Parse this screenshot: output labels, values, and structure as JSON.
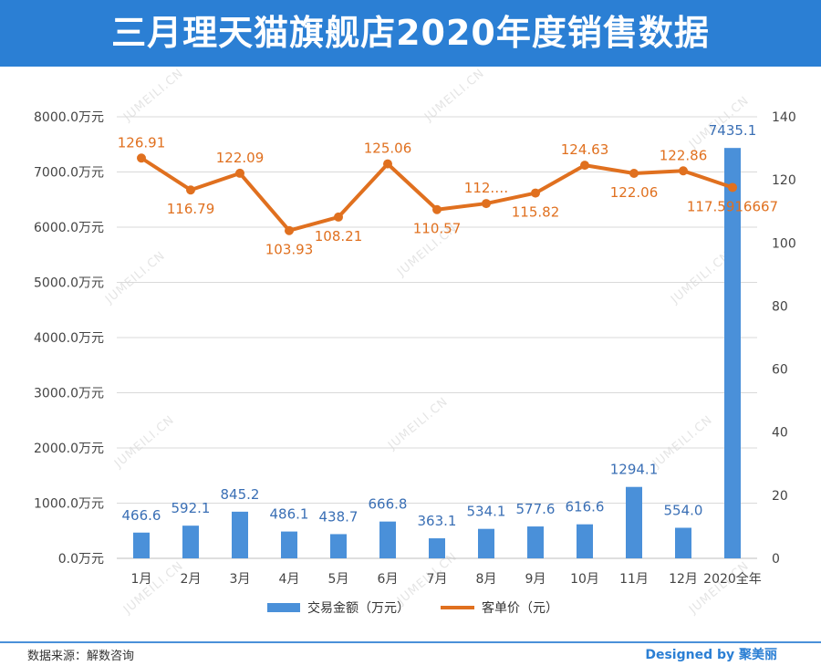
{
  "header": {
    "title": "三月理天猫旗舰店2020年度销售数据"
  },
  "footer": {
    "source": "数据来源：解数咨询",
    "designed_by": "Designed by 聚美丽"
  },
  "watermark": "JUMEILI.CN",
  "colors": {
    "header_bg": "#2b7fd4",
    "bar": "#4a90d9",
    "line": "#e0701f",
    "grid": "#d9d9d9"
  },
  "chart_data": {
    "type": "bar",
    "title": "三月理天猫旗舰店2020年度销售数据",
    "categories": [
      "1月",
      "2月",
      "3月",
      "4月",
      "5月",
      "6月",
      "7月",
      "8月",
      "9月",
      "10月",
      "11月",
      "12月",
      "2020全年"
    ],
    "series": [
      {
        "name": "交易金额（万元）",
        "type": "bar",
        "axis": "left",
        "values": [
          466.6,
          592.1,
          845.2,
          486.1,
          438.7,
          666.8,
          363.1,
          534.1,
          577.6,
          616.6,
          1294.1,
          554.0,
          7435.1
        ],
        "labels": [
          "466.6",
          "592.1",
          "845.2",
          "486.1",
          "438.7",
          "666.8",
          "363.1",
          "534.1",
          "577.6",
          "616.6",
          "1294.1",
          "554.0",
          "7435.1"
        ]
      },
      {
        "name": "客单价（元）",
        "type": "line",
        "axis": "right",
        "values": [
          126.91,
          116.79,
          122.09,
          103.93,
          108.21,
          125.06,
          110.57,
          112.5,
          115.82,
          124.63,
          122.06,
          122.86,
          117.5916667
        ],
        "labels": [
          "126.91",
          "116.79",
          "122.09",
          "103.93",
          "108.21",
          "125.06",
          "110.57",
          "112.…",
          "115.82",
          "124.63",
          "122.06",
          "122.86",
          "117.5916667"
        ]
      }
    ],
    "y_left": {
      "range": [
        0,
        8000
      ],
      "ticks": [
        0,
        1000,
        2000,
        3000,
        4000,
        5000,
        6000,
        7000,
        8000
      ],
      "tick_labels": [
        "0.0万元",
        "1000.0万元",
        "2000.0万元",
        "3000.0万元",
        "4000.0万元",
        "5000.0万元",
        "6000.0万元",
        "7000.0万元",
        "8000.0万元"
      ]
    },
    "y_right": {
      "range": [
        0,
        140
      ],
      "ticks": [
        0,
        20,
        40,
        60,
        80,
        100,
        120,
        140
      ],
      "tick_labels": [
        "0",
        "20",
        "40",
        "60",
        "80",
        "100",
        "120",
        "140"
      ]
    },
    "grid": true,
    "legend": "bottom"
  }
}
